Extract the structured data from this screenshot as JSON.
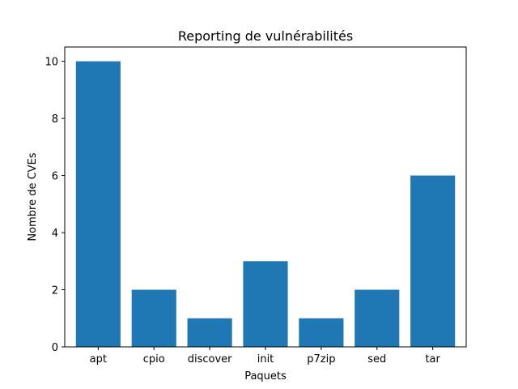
{
  "chart_data": {
    "type": "bar",
    "title": "Reporting de vulnérabilités",
    "xlabel": "Paquets",
    "ylabel": "Nombre de CVEs",
    "categories": [
      "apt",
      "cpio",
      "discover",
      "init",
      "p7zip",
      "sed",
      "tar"
    ],
    "values": [
      10,
      2,
      1,
      3,
      1,
      2,
      6
    ],
    "ylim": [
      0,
      10.5
    ],
    "yticks": [
      0,
      2,
      4,
      6,
      8,
      10
    ],
    "grid": false,
    "bar_color": "#1f77b4"
  }
}
